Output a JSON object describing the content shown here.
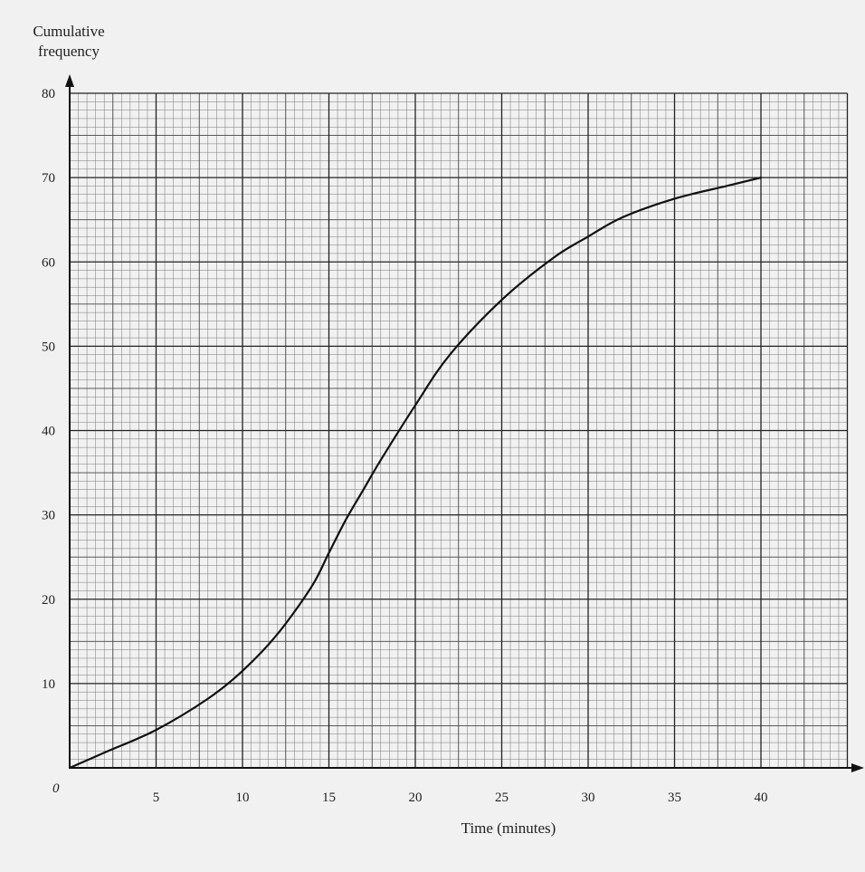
{
  "chart_data": {
    "type": "line",
    "title": "",
    "xlabel": "Time (minutes)",
    "ylabel_lines": [
      "Cumulative",
      "frequency"
    ],
    "origin_label": "0",
    "xlim": [
      0,
      45
    ],
    "ylim": [
      0,
      80
    ],
    "x_ticks": [
      5,
      10,
      15,
      20,
      25,
      30,
      35,
      40
    ],
    "y_ticks": [
      10,
      20,
      30,
      40,
      50,
      60,
      70,
      80
    ],
    "grid": true,
    "series": [
      {
        "x": [
          0,
          2,
          5,
          8,
          10,
          12,
          14,
          15,
          16,
          17,
          18,
          20,
          22,
          25,
          28,
          30,
          32,
          35,
          38,
          40
        ],
        "y": [
          0,
          1.8,
          4.5,
          8.2,
          11.5,
          15.8,
          21.5,
          25.5,
          29.5,
          33.0,
          36.5,
          43.0,
          49.0,
          55.5,
          60.5,
          63.0,
          65.3,
          67.5,
          69.0,
          70.0
        ]
      }
    ]
  }
}
